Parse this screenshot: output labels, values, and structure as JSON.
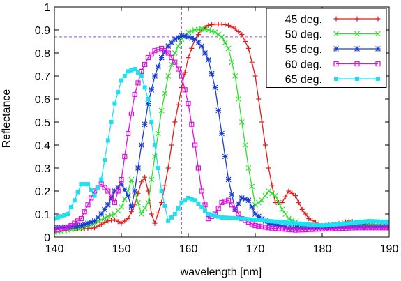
{
  "chart_data": {
    "type": "line",
    "xlabel": "wavelength [nm]",
    "ylabel": "Reflectance",
    "xlim": [
      140,
      190
    ],
    "ylim": [
      0,
      1
    ],
    "x_ticks": [
      140,
      150,
      160,
      170,
      180,
      190
    ],
    "y_ticks": [
      0,
      0.1,
      0.2,
      0.3,
      0.4,
      0.5,
      0.6,
      0.7,
      0.8,
      0.9,
      1
    ],
    "legend_position": "top-right",
    "grid": false,
    "reference_lines": {
      "x": 159,
      "y": 0.87
    },
    "series": [
      {
        "name": "45 deg.",
        "color": "#e41a1c",
        "marker": "plus",
        "points": [
          [
            140,
            0.04
          ],
          [
            142,
            0.04
          ],
          [
            144,
            0.035
          ],
          [
            146,
            0.04
          ],
          [
            148,
            0.07
          ],
          [
            149,
            0.075
          ],
          [
            150,
            0.06
          ],
          [
            151,
            0.08
          ],
          [
            152,
            0.14
          ],
          [
            153,
            0.24
          ],
          [
            153.5,
            0.26
          ],
          [
            154,
            0.2
          ],
          [
            154.5,
            0.1
          ],
          [
            155,
            0.06
          ],
          [
            156,
            0.15
          ],
          [
            157,
            0.3
          ],
          [
            158,
            0.5
          ],
          [
            159,
            0.65
          ],
          [
            160,
            0.78
          ],
          [
            161,
            0.86
          ],
          [
            162,
            0.9
          ],
          [
            163,
            0.92
          ],
          [
            164,
            0.925
          ],
          [
            165,
            0.925
          ],
          [
            166,
            0.92
          ],
          [
            167,
            0.905
          ],
          [
            168,
            0.88
          ],
          [
            169,
            0.82
          ],
          [
            170,
            0.7
          ],
          [
            171,
            0.5
          ],
          [
            172,
            0.3
          ],
          [
            173,
            0.15
          ],
          [
            174,
            0.15
          ],
          [
            175,
            0.2
          ],
          [
            176,
            0.18
          ],
          [
            177,
            0.12
          ],
          [
            178,
            0.08
          ],
          [
            180,
            0.05
          ],
          [
            182,
            0.055
          ],
          [
            184,
            0.07
          ],
          [
            186,
            0.06
          ],
          [
            188,
            0.045
          ],
          [
            190,
            0.04
          ]
        ]
      },
      {
        "name": "50 deg.",
        "color": "#2ee02e",
        "marker": "cross",
        "points": [
          [
            140,
            0.02
          ],
          [
            142,
            0.03
          ],
          [
            144,
            0.04
          ],
          [
            146,
            0.06
          ],
          [
            148,
            0.09
          ],
          [
            149,
            0.1
          ],
          [
            150,
            0.13
          ],
          [
            151,
            0.2
          ],
          [
            151.5,
            0.25
          ],
          [
            152,
            0.2
          ],
          [
            153,
            0.1
          ],
          [
            154,
            0.15
          ],
          [
            155,
            0.35
          ],
          [
            156,
            0.55
          ],
          [
            157,
            0.7
          ],
          [
            158,
            0.8
          ],
          [
            159,
            0.86
          ],
          [
            160,
            0.89
          ],
          [
            161,
            0.9
          ],
          [
            162,
            0.905
          ],
          [
            163,
            0.9
          ],
          [
            164,
            0.89
          ],
          [
            165,
            0.87
          ],
          [
            166,
            0.82
          ],
          [
            167,
            0.7
          ],
          [
            168,
            0.5
          ],
          [
            169,
            0.3
          ],
          [
            170,
            0.14
          ],
          [
            171,
            0.16
          ],
          [
            172,
            0.2
          ],
          [
            173,
            0.18
          ],
          [
            174,
            0.12
          ],
          [
            175,
            0.08
          ],
          [
            177,
            0.05
          ],
          [
            180,
            0.04
          ],
          [
            184,
            0.05
          ],
          [
            187,
            0.055
          ],
          [
            190,
            0.05
          ]
        ]
      },
      {
        "name": "55 deg.",
        "color": "#1a3fd0",
        "marker": "star",
        "points": [
          [
            140,
            0.04
          ],
          [
            142,
            0.045
          ],
          [
            144,
            0.05
          ],
          [
            146,
            0.07
          ],
          [
            147,
            0.1
          ],
          [
            148,
            0.14
          ],
          [
            149,
            0.2
          ],
          [
            150,
            0.23
          ],
          [
            151,
            0.18
          ],
          [
            151.5,
            0.13
          ],
          [
            152,
            0.2
          ],
          [
            153,
            0.4
          ],
          [
            154,
            0.58
          ],
          [
            155,
            0.7
          ],
          [
            156,
            0.78
          ],
          [
            157,
            0.83
          ],
          [
            158,
            0.86
          ],
          [
            159,
            0.875
          ],
          [
            160,
            0.87
          ],
          [
            161,
            0.86
          ],
          [
            162,
            0.83
          ],
          [
            163,
            0.77
          ],
          [
            164,
            0.65
          ],
          [
            165,
            0.45
          ],
          [
            166,
            0.25
          ],
          [
            167,
            0.12
          ],
          [
            168,
            0.17
          ],
          [
            169,
            0.16
          ],
          [
            170,
            0.1
          ],
          [
            172,
            0.06
          ],
          [
            175,
            0.04
          ],
          [
            180,
            0.04
          ],
          [
            185,
            0.045
          ],
          [
            190,
            0.045
          ]
        ]
      },
      {
        "name": "60 deg.",
        "color": "#e010e0",
        "marker": "square",
        "points": [
          [
            140,
            0.03
          ],
          [
            142,
            0.04
          ],
          [
            144,
            0.08
          ],
          [
            145,
            0.14
          ],
          [
            146,
            0.2
          ],
          [
            147,
            0.23
          ],
          [
            148,
            0.2
          ],
          [
            149,
            0.15
          ],
          [
            150,
            0.25
          ],
          [
            151,
            0.45
          ],
          [
            152,
            0.62
          ],
          [
            153,
            0.72
          ],
          [
            154,
            0.78
          ],
          [
            155,
            0.81
          ],
          [
            156,
            0.82
          ],
          [
            157,
            0.8
          ],
          [
            158,
            0.76
          ],
          [
            159,
            0.7
          ],
          [
            160,
            0.58
          ],
          [
            161,
            0.4
          ],
          [
            162,
            0.2
          ],
          [
            163,
            0.08
          ],
          [
            164,
            0.1
          ],
          [
            165,
            0.15
          ],
          [
            166,
            0.16
          ],
          [
            167,
            0.12
          ],
          [
            168,
            0.08
          ],
          [
            170,
            0.05
          ],
          [
            172,
            0.04
          ],
          [
            176,
            0.03
          ],
          [
            180,
            0.035
          ],
          [
            185,
            0.04
          ],
          [
            190,
            0.04
          ]
        ]
      },
      {
        "name": "65 deg.",
        "color": "#1ee0f0",
        "marker": "filled-square",
        "points": [
          [
            140,
            0.08
          ],
          [
            141,
            0.09
          ],
          [
            142,
            0.1
          ],
          [
            143,
            0.16
          ],
          [
            144,
            0.23
          ],
          [
            145,
            0.23
          ],
          [
            146,
            0.18
          ],
          [
            147,
            0.25
          ],
          [
            148,
            0.42
          ],
          [
            149,
            0.58
          ],
          [
            150,
            0.68
          ],
          [
            151,
            0.72
          ],
          [
            152,
            0.73
          ],
          [
            153,
            0.7
          ],
          [
            154,
            0.6
          ],
          [
            155,
            0.4
          ],
          [
            156,
            0.2
          ],
          [
            157,
            0.07
          ],
          [
            158,
            0.1
          ],
          [
            159,
            0.15
          ],
          [
            160,
            0.17
          ],
          [
            161,
            0.16
          ],
          [
            162,
            0.13
          ],
          [
            163,
            0.1
          ],
          [
            165,
            0.085
          ],
          [
            168,
            0.08
          ],
          [
            172,
            0.07
          ],
          [
            176,
            0.06
          ],
          [
            180,
            0.05
          ],
          [
            184,
            0.06
          ],
          [
            187,
            0.07
          ],
          [
            190,
            0.065
          ]
        ]
      }
    ]
  }
}
